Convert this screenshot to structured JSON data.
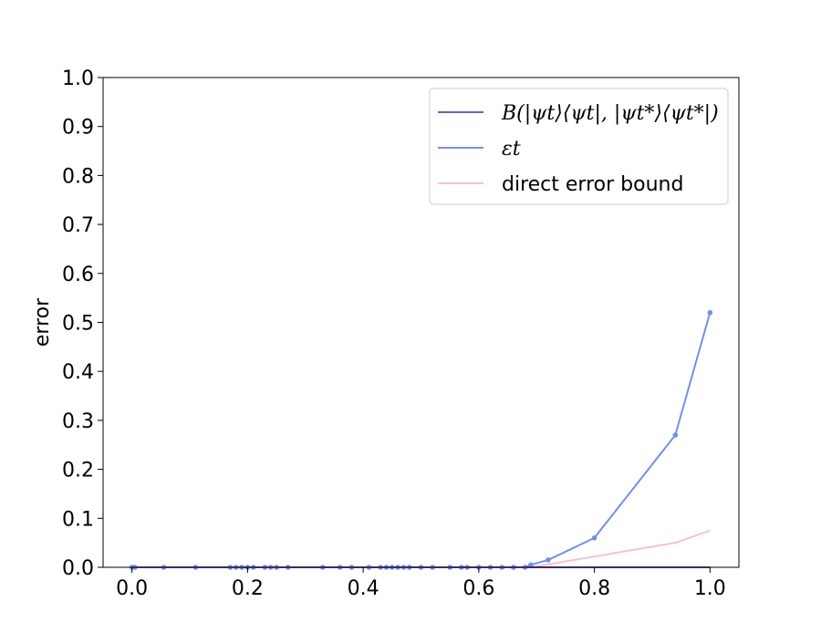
{
  "chart_data": {
    "type": "line",
    "title": "",
    "xlabel": "",
    "ylabel": "error",
    "xlim": [
      -0.05,
      1.05
    ],
    "ylim": [
      0.0,
      1.0
    ],
    "xticks": [
      "0.0",
      "0.2",
      "0.4",
      "0.6",
      "0.8",
      "1.0"
    ],
    "yticks": [
      "0.0",
      "0.1",
      "0.2",
      "0.3",
      "0.4",
      "0.5",
      "0.6",
      "0.7",
      "0.8",
      "0.9",
      "1.0"
    ],
    "grid": false,
    "legend_position": "top-right",
    "series": [
      {
        "name": "B(|ψt⟩⟨ψt|, |ψt*⟩⟨ψt*|)",
        "color": "#7e57c2",
        "markers": false,
        "x": [
          0.0,
          0.72,
          0.8,
          0.94,
          1.0
        ],
        "y": [
          0.0,
          0.0,
          0.0,
          0.0,
          0.0
        ]
      },
      {
        "name": "εt",
        "color": "#7390e3",
        "markers": true,
        "x": [
          0.0,
          0.003,
          0.005,
          0.055,
          0.11,
          0.17,
          0.18,
          0.19,
          0.2,
          0.21,
          0.23,
          0.24,
          0.25,
          0.27,
          0.33,
          0.36,
          0.38,
          0.41,
          0.43,
          0.44,
          0.45,
          0.46,
          0.47,
          0.48,
          0.5,
          0.52,
          0.55,
          0.57,
          0.58,
          0.6,
          0.62,
          0.64,
          0.66,
          0.68,
          0.69,
          0.72,
          0.8,
          0.94,
          1.0
        ],
        "y": [
          0.0,
          0.0,
          0.0,
          0.0,
          0.0,
          0.0,
          0.0,
          0.0,
          0.0,
          0.0,
          0.0,
          0.0,
          0.0,
          0.0,
          0.0,
          0.0,
          0.0,
          0.0,
          0.0,
          0.0,
          0.0,
          0.0,
          0.0,
          0.0,
          0.0,
          0.0,
          0.0,
          0.0,
          0.0,
          0.0,
          0.0,
          0.0,
          0.0,
          0.0,
          0.005,
          0.015,
          0.06,
          0.27,
          0.52
        ]
      },
      {
        "name": "direct error bound",
        "color": "#f4c2cf",
        "markers": false,
        "x": [
          0.0,
          0.69,
          0.72,
          0.8,
          0.94,
          1.0
        ],
        "y": [
          0.0,
          0.0,
          0.006,
          0.022,
          0.05,
          0.075
        ]
      }
    ]
  }
}
